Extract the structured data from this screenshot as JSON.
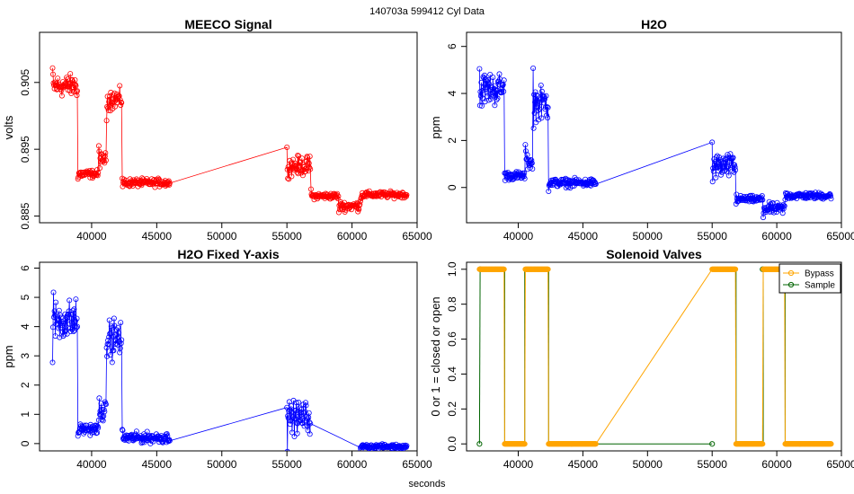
{
  "figure": {
    "suptitle": "140703a    599412   Cyl Data",
    "xlabel": "seconds"
  },
  "chart_data": [
    {
      "type": "line",
      "title": "MEECO Signal",
      "xlabel": "",
      "ylabel": "volts",
      "color": "#ff0000",
      "xlim": [
        36000,
        65000
      ],
      "ylim": [
        0.884,
        0.9125
      ],
      "xticks": [
        40000,
        45000,
        50000,
        55000,
        60000,
        65000
      ],
      "yticks": [
        0.885,
        0.895,
        0.905
      ],
      "yticklabels": [
        "0.885",
        "0.895",
        "0.905"
      ],
      "segments": [
        {
          "x0": 37000,
          "x1": 38900,
          "mean": 0.9045,
          "noise": 0.0014
        },
        {
          "x0": 38950,
          "x1": 40500,
          "mean": 0.8913,
          "noise": 0.0005
        },
        {
          "x0": 40550,
          "x1": 41100,
          "mean": 0.8935,
          "noise": 0.0008
        },
        {
          "x0": 41150,
          "x1": 42300,
          "mean": 0.9025,
          "noise": 0.0013
        },
        {
          "x0": 42350,
          "x1": 46000,
          "mean": 0.89,
          "noise": 0.0005
        },
        {
          "x0": 55000,
          "x1": 56800,
          "mean": 0.8925,
          "noise": 0.0012
        },
        {
          "x0": 56850,
          "x1": 58900,
          "mean": 0.888,
          "noise": 0.0004
        },
        {
          "x0": 58950,
          "x1": 60600,
          "mean": 0.8865,
          "noise": 0.0006
        },
        {
          "x0": 60650,
          "x1": 64200,
          "mean": 0.8882,
          "noise": 0.0004
        }
      ]
    },
    {
      "type": "line",
      "title": "H2O",
      "xlabel": "",
      "ylabel": "ppm",
      "color": "#0000ff",
      "xlim": [
        36000,
        65000
      ],
      "ylim": [
        -1.5,
        6.6
      ],
      "xticks": [
        40000,
        45000,
        50000,
        55000,
        60000,
        65000
      ],
      "yticks": [
        0,
        2,
        4,
        6
      ],
      "yticklabels": [
        "0",
        "2",
        "4",
        "6"
      ],
      "segments": [
        {
          "x0": 37000,
          "x1": 38900,
          "mean": 4.2,
          "noise": 0.6
        },
        {
          "x0": 38950,
          "x1": 40500,
          "mean": 0.5,
          "noise": 0.15
        },
        {
          "x0": 40550,
          "x1": 41100,
          "mean": 1.1,
          "noise": 0.3
        },
        {
          "x0": 41150,
          "x1": 42300,
          "mean": 3.6,
          "noise": 0.6
        },
        {
          "x0": 42350,
          "x1": 46000,
          "mean": 0.2,
          "noise": 0.15
        },
        {
          "x0": 55000,
          "x1": 56800,
          "mean": 0.9,
          "noise": 0.45
        },
        {
          "x0": 56850,
          "x1": 58900,
          "mean": -0.5,
          "noise": 0.12
        },
        {
          "x0": 58950,
          "x1": 60600,
          "mean": -0.9,
          "noise": 0.2
        },
        {
          "x0": 60650,
          "x1": 64200,
          "mean": -0.35,
          "noise": 0.12
        }
      ]
    },
    {
      "type": "line",
      "title": "H2O Fixed Y-axis",
      "xlabel": "",
      "ylabel": "ppm",
      "color": "#0000ff",
      "xlim": [
        36000,
        65000
      ],
      "ylim": [
        -0.25,
        6.2
      ],
      "xticks": [
        40000,
        45000,
        50000,
        55000,
        60000,
        65000
      ],
      "yticks": [
        0,
        1,
        2,
        3,
        4,
        5,
        6
      ],
      "yticklabels": [
        "0",
        "1",
        "2",
        "3",
        "4",
        "5",
        "6"
      ],
      "segments": [
        {
          "x0": 37000,
          "x1": 38900,
          "mean": 4.2,
          "noise": 0.6
        },
        {
          "x0": 38950,
          "x1": 40500,
          "mean": 0.5,
          "noise": 0.15
        },
        {
          "x0": 40550,
          "x1": 41100,
          "mean": 1.1,
          "noise": 0.3
        },
        {
          "x0": 41150,
          "x1": 42300,
          "mean": 3.6,
          "noise": 0.6
        },
        {
          "x0": 42350,
          "x1": 46000,
          "mean": 0.2,
          "noise": 0.15
        },
        {
          "x0": 55000,
          "x1": 56800,
          "mean": 0.9,
          "noise": 0.45
        },
        {
          "x0": 60650,
          "x1": 64200,
          "mean": -0.1,
          "noise": 0.06
        }
      ]
    },
    {
      "type": "line",
      "title": "Solenoid Valves",
      "xlabel": "",
      "ylabel": "0 or 1 = closed or open",
      "xlim": [
        36000,
        65000
      ],
      "ylim": [
        -0.04,
        1.04
      ],
      "xticks": [
        40000,
        45000,
        50000,
        55000,
        60000,
        65000
      ],
      "yticks": [
        0,
        0.2,
        0.4,
        0.6,
        0.8,
        1.0
      ],
      "yticklabels": [
        "0.0",
        "0.2",
        "0.4",
        "0.6",
        "0.8",
        "1.0"
      ],
      "legend": {
        "position": "top-right"
      },
      "series": [
        {
          "name": "Bypass",
          "color": "#ffa500",
          "segments": [
            {
              "x0": 37000,
              "x1": 38900,
              "value": 1
            },
            {
              "x0": 38950,
              "x1": 40500,
              "value": 0
            },
            {
              "x0": 40550,
              "x1": 42300,
              "value": 1
            },
            {
              "x0": 42350,
              "x1": 46000,
              "value": 0
            },
            {
              "x0": 55000,
              "x1": 56800,
              "value": 1
            },
            {
              "x0": 56850,
              "x1": 58900,
              "value": 0
            },
            {
              "x0": 58950,
              "x1": 60600,
              "value": 1
            },
            {
              "x0": 60650,
              "x1": 64200,
              "value": 0
            }
          ]
        },
        {
          "name": "Sample",
          "color": "#006400",
          "points": [
            {
              "x": 37000,
              "y": 0
            },
            {
              "x": 37050,
              "y": 1
            },
            {
              "x": 55000,
              "y": 0
            },
            {
              "x": 58900,
              "y": 1
            }
          ],
          "drops": [
            38950,
            40500,
            42350,
            56850,
            58950,
            60650
          ],
          "baseline": {
            "x0": 46000,
            "x1": 55000,
            "value": 0
          }
        }
      ]
    }
  ]
}
